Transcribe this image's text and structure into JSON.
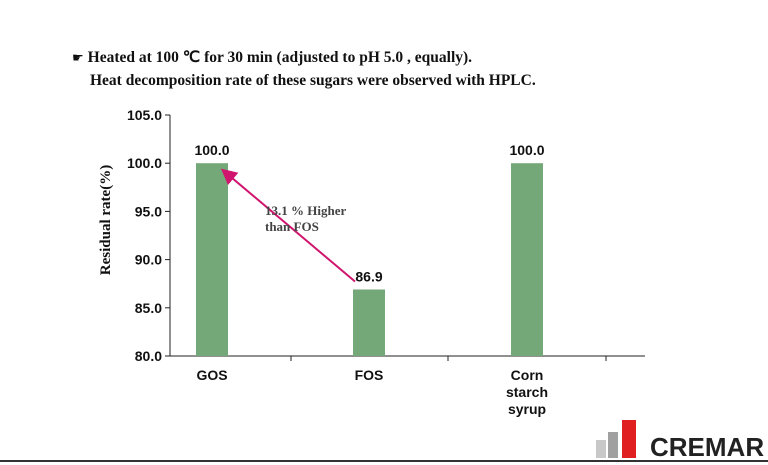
{
  "header": {
    "bullet": "☛",
    "line1": "Heated at 100 ℃ for 30 min (adjusted to pH 5.0 , equally).",
    "line2": "Heat decomposition rate of these sugars were observed with HPLC."
  },
  "chart_data": {
    "type": "bar",
    "categories": [
      [
        "GOS"
      ],
      [
        "FOS"
      ],
      [
        "Corn",
        "starch",
        "syrup"
      ]
    ],
    "values": [
      100.0,
      86.9,
      100.0
    ],
    "value_labels": [
      "100.0",
      "86.9",
      "100.0"
    ],
    "ylabel": "Residual  rate(%)",
    "ylim": [
      80.0,
      105.0
    ],
    "yticks": [
      "80.0",
      "85.0",
      "90.0",
      "95.0",
      "100.0",
      "105.0"
    ],
    "grid": false,
    "bar_color": "#74a878",
    "annotation": {
      "lines": [
        "13.1 % Higher",
        "than FOS"
      ],
      "arrow_color": "#d0156e",
      "from_category": 1,
      "to_category": 0
    }
  },
  "logo": {
    "text": "CREMAR",
    "colors": [
      "#c8c8c8",
      "#a0a0a0",
      "#e02020"
    ]
  }
}
